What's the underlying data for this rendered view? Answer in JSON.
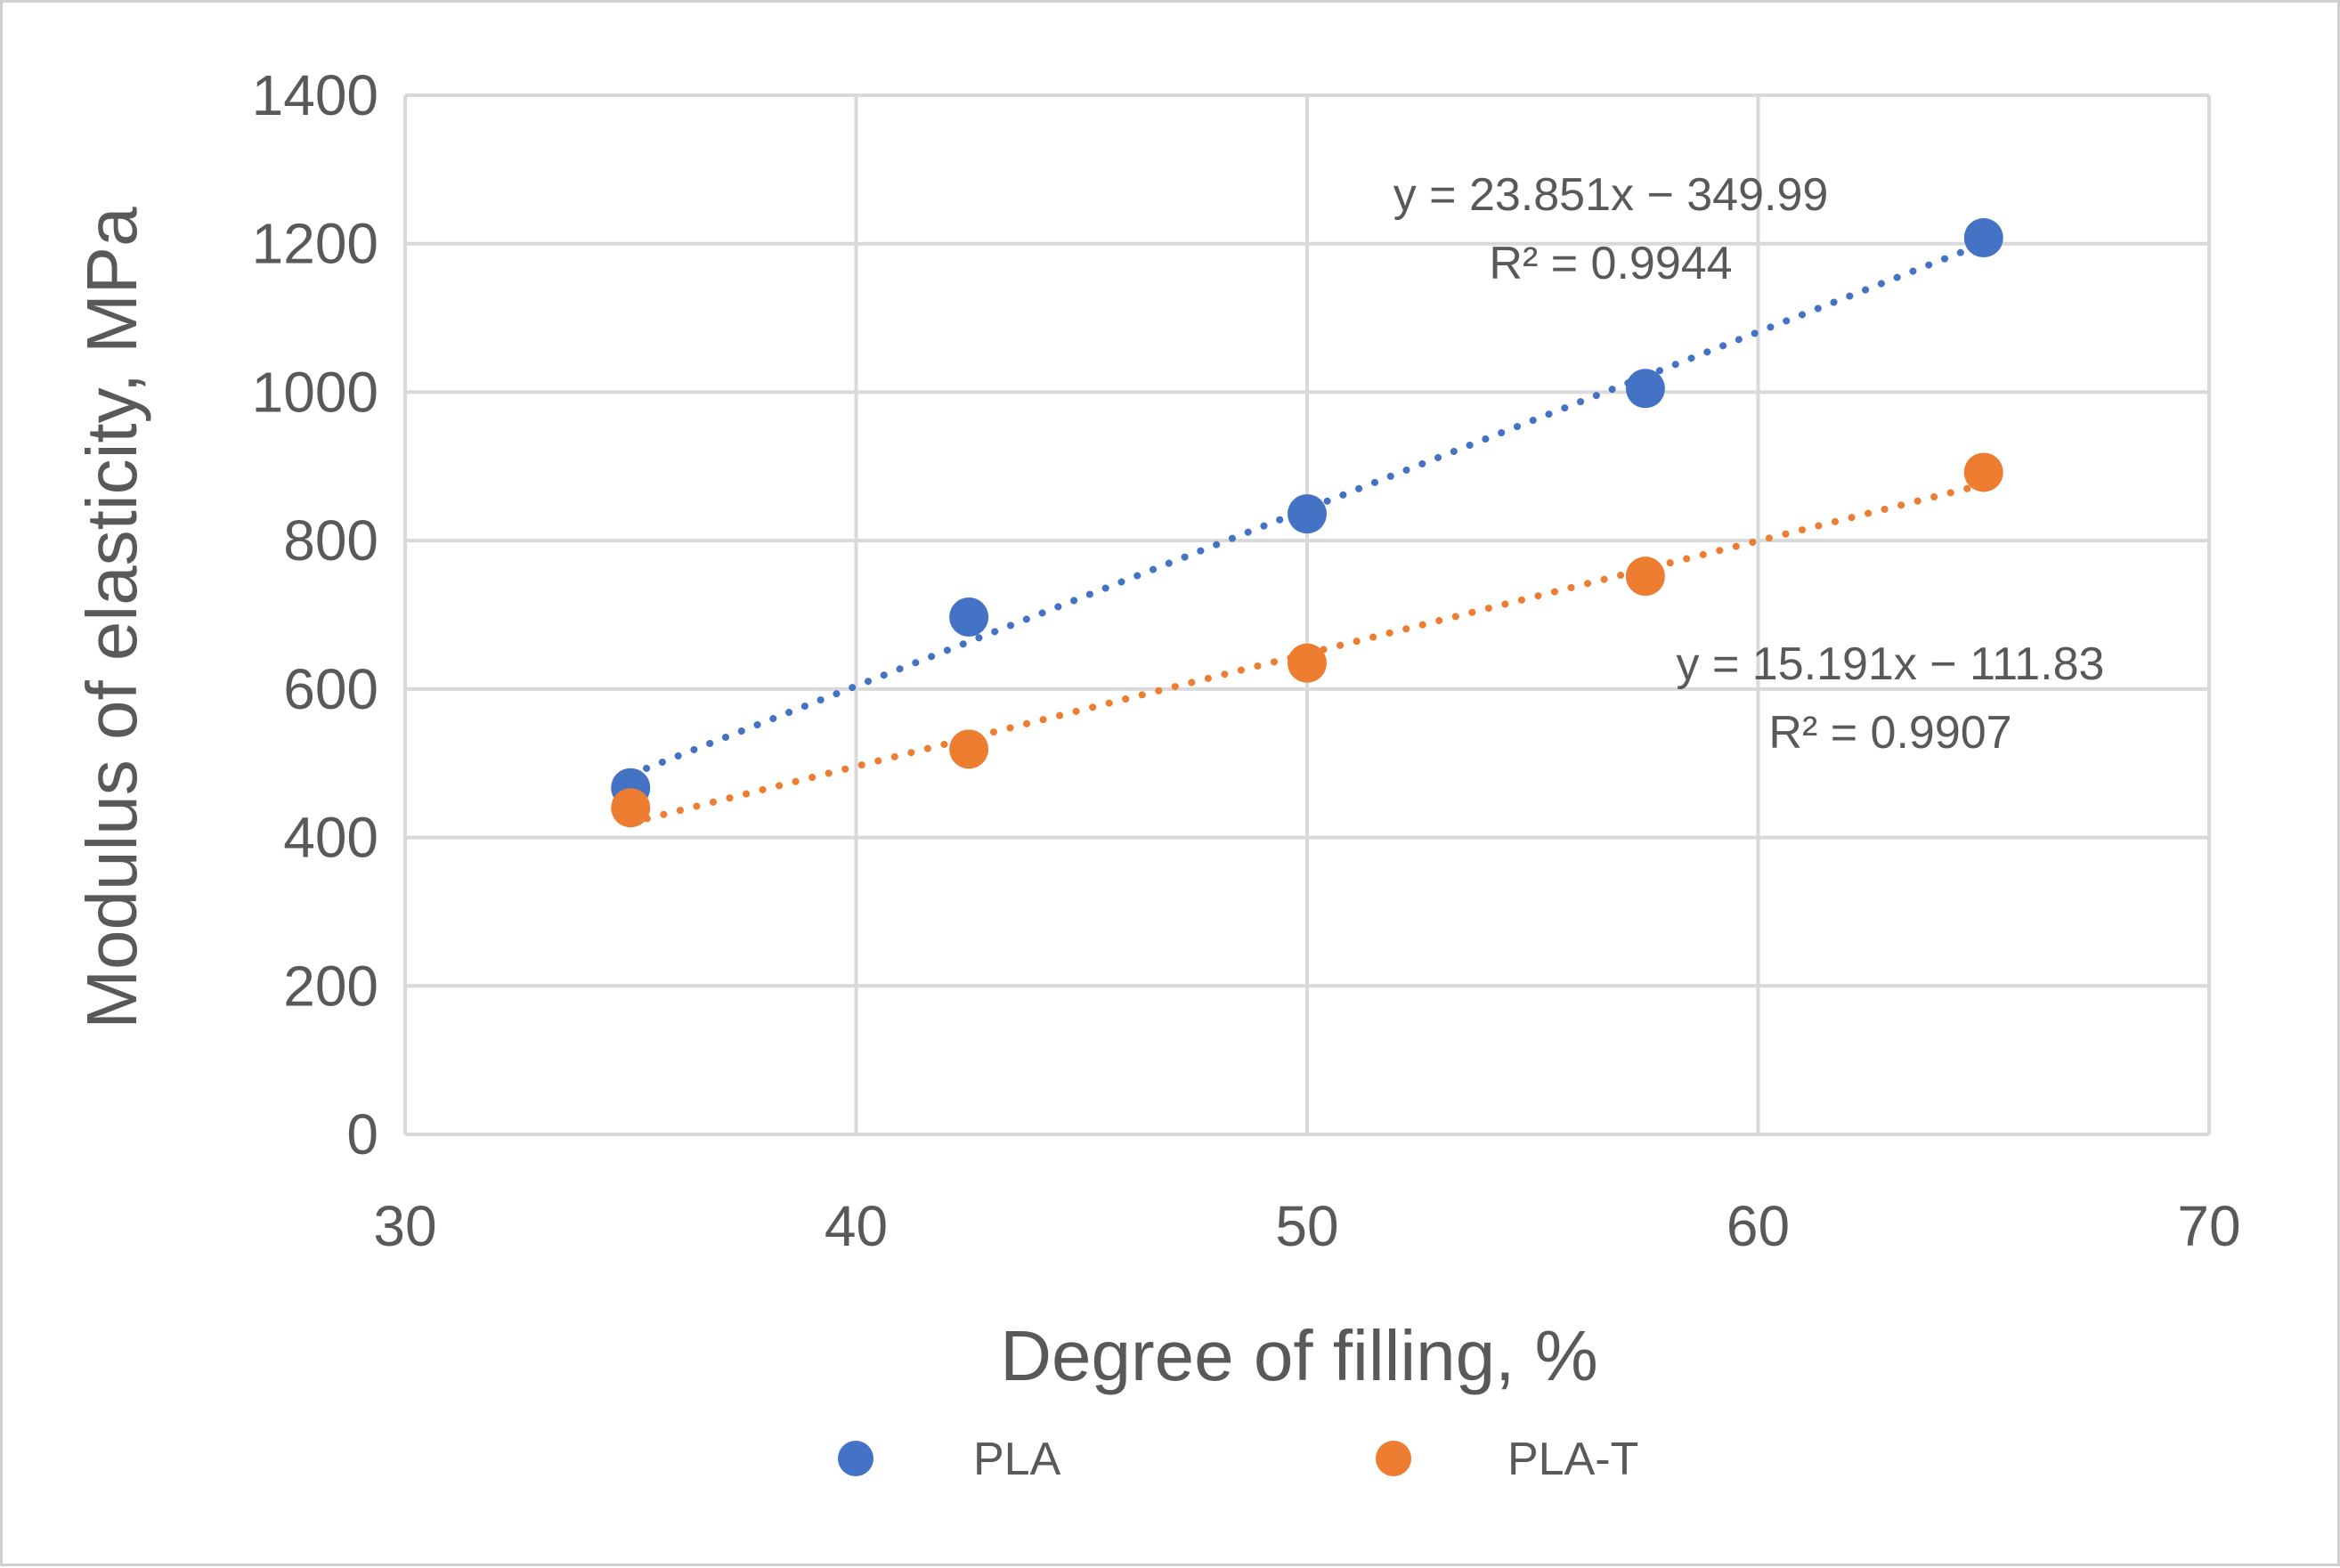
{
  "chart_data": {
    "type": "scatter",
    "title": "",
    "xlabel": "Degree of filling, %",
    "ylabel": "Modulus of elasticity, MPa",
    "xlim": [
      30,
      70
    ],
    "ylim": [
      0,
      1400
    ],
    "xticks": [
      30,
      40,
      50,
      60,
      70
    ],
    "yticks": [
      0,
      200,
      400,
      600,
      800,
      1000,
      1200,
      1400
    ],
    "grid": true,
    "legend_position": "bottom",
    "series": [
      {
        "name": "PLA",
        "color": "#4472C4",
        "x": [
          35,
          42.5,
          50,
          57.5,
          65
        ],
        "y": [
          467,
          697,
          836,
          1005,
          1208
        ],
        "trendline": {
          "type": "linear",
          "slope": 23.851,
          "intercept": -349.99,
          "equation": "y = 23.851x − 349.99",
          "r2": "R² = 0.9944"
        }
      },
      {
        "name": "PLA-T",
        "color": "#ED7D31",
        "x": [
          35,
          42.5,
          50,
          57.5,
          65
        ],
        "y": [
          440,
          519,
          635,
          752,
          892
        ],
        "trendline": {
          "type": "linear",
          "slope": 15.191,
          "intercept": -111.83,
          "equation": "y = 15.191x − 111.83",
          "r2": "R² = 0.9907"
        }
      }
    ]
  }
}
